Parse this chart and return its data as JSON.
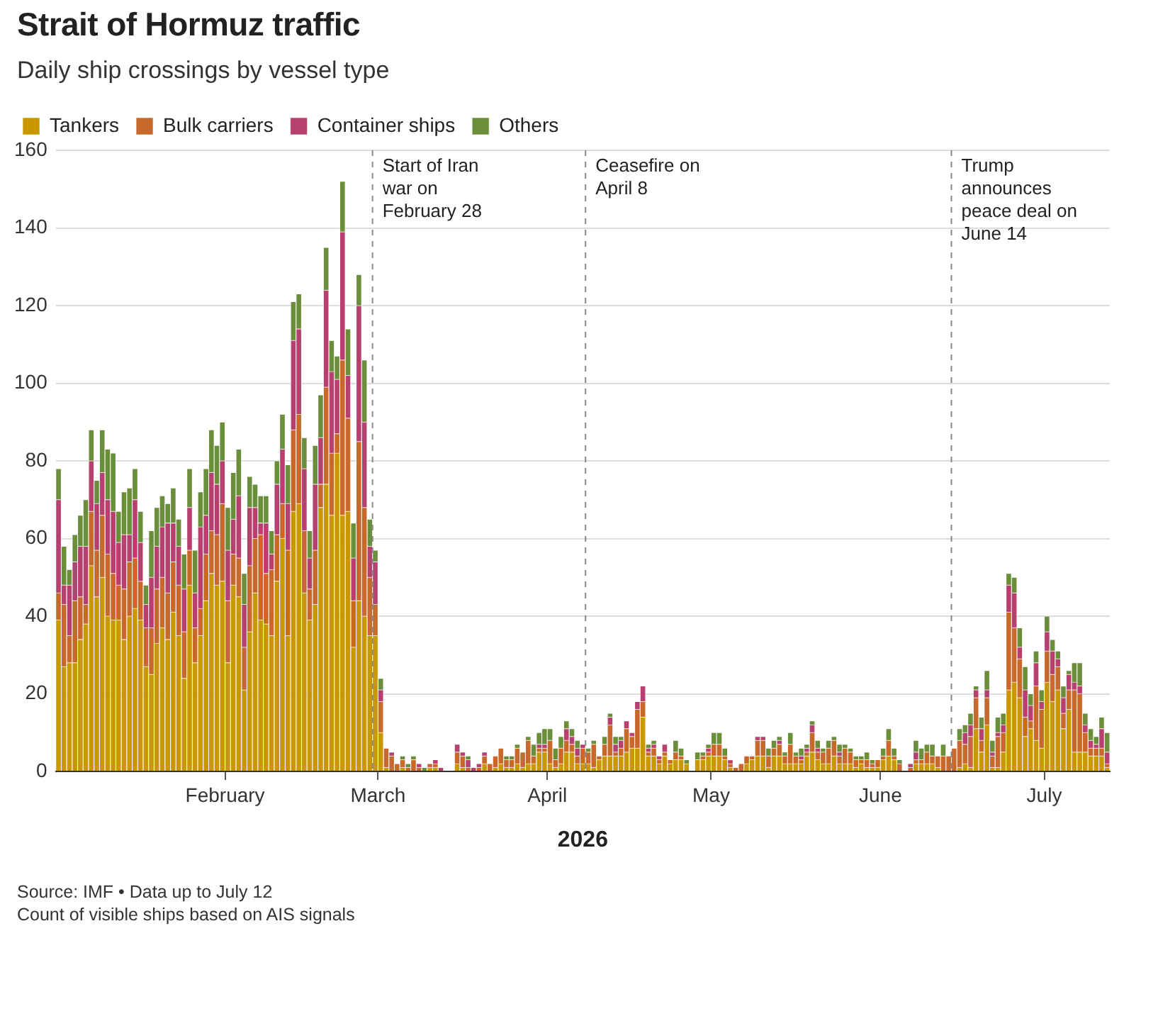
{
  "chart_data": {
    "type": "bar",
    "stacked": true,
    "title": "Strait of Hormuz traffic",
    "subtitle": "Daily ship crossings by vessel type",
    "xlabel": "2026",
    "x": [
      "2026-01-01",
      "2026-01-02",
      "2026-01-03",
      "2026-01-04",
      "2026-01-05",
      "2026-01-06",
      "2026-01-07",
      "2026-01-08",
      "2026-01-09",
      "2026-01-10",
      "2026-01-11",
      "2026-01-12",
      "2026-01-13",
      "2026-01-14",
      "2026-01-15",
      "2026-01-16",
      "2026-01-17",
      "2026-01-18",
      "2026-01-19",
      "2026-01-20",
      "2026-01-21",
      "2026-01-22",
      "2026-01-23",
      "2026-01-24",
      "2026-01-25",
      "2026-01-26",
      "2026-01-27",
      "2026-01-28",
      "2026-01-29",
      "2026-01-30",
      "2026-01-31",
      "2026-02-01",
      "2026-02-02",
      "2026-02-03",
      "2026-02-04",
      "2026-02-05",
      "2026-02-06",
      "2026-02-07",
      "2026-02-08",
      "2026-02-09",
      "2026-02-10",
      "2026-02-11",
      "2026-02-12",
      "2026-02-13",
      "2026-02-14",
      "2026-02-15",
      "2026-02-16",
      "2026-02-17",
      "2026-02-18",
      "2026-02-19",
      "2026-02-20",
      "2026-02-21",
      "2026-02-22",
      "2026-02-23",
      "2026-02-24",
      "2026-02-25",
      "2026-02-26",
      "2026-02-27",
      "2026-02-28",
      "2026-03-01",
      "2026-03-02",
      "2026-03-03",
      "2026-03-04",
      "2026-03-05",
      "2026-03-06",
      "2026-03-07",
      "2026-03-08",
      "2026-03-09",
      "2026-03-10",
      "2026-03-11",
      "2026-03-12",
      "2026-03-13",
      "2026-03-14",
      "2026-03-15",
      "2026-03-16",
      "2026-03-17",
      "2026-03-18",
      "2026-03-19",
      "2026-03-20",
      "2026-03-21",
      "2026-03-22",
      "2026-03-23",
      "2026-03-24",
      "2026-03-25",
      "2026-03-26",
      "2026-03-27",
      "2026-03-28",
      "2026-03-29",
      "2026-03-30",
      "2026-03-31",
      "2026-04-01",
      "2026-04-02",
      "2026-04-03",
      "2026-04-04",
      "2026-04-05",
      "2026-04-06",
      "2026-04-07",
      "2026-04-08",
      "2026-04-09",
      "2026-04-10",
      "2026-04-11",
      "2026-04-12",
      "2026-04-13",
      "2026-04-14",
      "2026-04-15",
      "2026-04-16",
      "2026-04-17",
      "2026-04-18",
      "2026-04-19",
      "2026-04-20",
      "2026-04-21",
      "2026-04-22",
      "2026-04-23",
      "2026-04-24",
      "2026-04-25",
      "2026-04-26",
      "2026-04-27",
      "2026-04-28",
      "2026-04-29",
      "2026-04-30",
      "2026-05-01",
      "2026-05-02",
      "2026-05-03",
      "2026-05-04",
      "2026-05-05",
      "2026-05-06",
      "2026-05-07",
      "2026-05-08",
      "2026-05-09",
      "2026-05-10",
      "2026-05-11",
      "2026-05-12",
      "2026-05-13",
      "2026-05-14",
      "2026-05-15",
      "2026-05-16",
      "2026-05-17",
      "2026-05-18",
      "2026-05-19",
      "2026-05-20",
      "2026-05-21",
      "2026-05-22",
      "2026-05-23",
      "2026-05-24",
      "2026-05-25",
      "2026-05-26",
      "2026-05-27",
      "2026-05-28",
      "2026-05-29",
      "2026-05-30",
      "2026-05-31",
      "2026-06-01",
      "2026-06-02",
      "2026-06-03",
      "2026-06-04",
      "2026-06-05",
      "2026-06-06",
      "2026-06-07",
      "2026-06-08",
      "2026-06-09",
      "2026-06-10",
      "2026-06-11",
      "2026-06-12",
      "2026-06-13",
      "2026-06-14",
      "2026-06-15",
      "2026-06-16",
      "2026-06-17",
      "2026-06-18",
      "2026-06-19",
      "2026-06-20",
      "2026-06-21",
      "2026-06-22",
      "2026-06-23",
      "2026-06-24",
      "2026-06-25",
      "2026-06-26",
      "2026-06-27",
      "2026-06-28",
      "2026-06-29",
      "2026-06-30",
      "2026-07-01",
      "2026-07-02",
      "2026-07-03",
      "2026-07-04",
      "2026-07-05",
      "2026-07-06",
      "2026-07-07",
      "2026-07-08",
      "2026-07-09",
      "2026-07-10",
      "2026-07-11",
      "2026-07-12"
    ],
    "series": [
      {
        "name": "Tankers",
        "color": "#c99700",
        "values": [
          39,
          27,
          28,
          28,
          34,
          38,
          53,
          45,
          50,
          40,
          39,
          39,
          34,
          40,
          42,
          39,
          27,
          25,
          33,
          37,
          34,
          41,
          35,
          24,
          48,
          28,
          35,
          44,
          51,
          48,
          49,
          28,
          48,
          45,
          21,
          36,
          46,
          39,
          38,
          35,
          49,
          60,
          35,
          67,
          69,
          46,
          39,
          43,
          68,
          74,
          66,
          82,
          66,
          67,
          32,
          44,
          40,
          35,
          35,
          10,
          1,
          0,
          0,
          1,
          0,
          0,
          0,
          0,
          1,
          1,
          0,
          0,
          0,
          2,
          1,
          0,
          0,
          0,
          2,
          0,
          1,
          2,
          1,
          1,
          2,
          1,
          2,
          2,
          5,
          5,
          2,
          1,
          2,
          5,
          5,
          2,
          2,
          2,
          1,
          3,
          4,
          4,
          4,
          4,
          5,
          6,
          6,
          14,
          4,
          4,
          2,
          4,
          2,
          3,
          3,
          2,
          0,
          3,
          3,
          4,
          4,
          4,
          3,
          1,
          0,
          0,
          2,
          3,
          4,
          4,
          1,
          4,
          4,
          2,
          2,
          2,
          2,
          4,
          5,
          3,
          2,
          2,
          4,
          2,
          2,
          2,
          1,
          2,
          1,
          1,
          1,
          3,
          4,
          3,
          0,
          0,
          0,
          2,
          2,
          2,
          2,
          1,
          0,
          0,
          0,
          1,
          2,
          1,
          11,
          5,
          12,
          1,
          1,
          5,
          21,
          23,
          19,
          9,
          11,
          8,
          6,
          23,
          18,
          21,
          11,
          16,
          5,
          5,
          5,
          4,
          4,
          4,
          1
        ]
      },
      {
        "name": "Bulk carriers",
        "color": "#c8682a",
        "values": [
          7,
          16,
          7,
          16,
          11,
          5,
          14,
          12,
          16,
          16,
          12,
          9,
          13,
          14,
          13,
          10,
          10,
          12,
          14,
          13,
          12,
          13,
          13,
          12,
          9,
          9,
          7,
          12,
          11,
          13,
          20,
          16,
          8,
          10,
          11,
          17,
          14,
          22,
          13,
          17,
          12,
          9,
          22,
          21,
          23,
          16,
          8,
          14,
          6,
          25,
          16,
          5,
          40,
          24,
          12,
          41,
          28,
          15,
          8,
          8,
          5,
          4,
          2,
          2,
          1,
          3,
          1,
          0,
          1,
          1,
          0,
          0,
          0,
          3,
          3,
          1,
          0,
          1,
          2,
          2,
          3,
          4,
          2,
          2,
          4,
          4,
          6,
          2,
          1,
          1,
          6,
          2,
          4,
          3,
          2,
          2,
          4,
          3,
          6,
          1,
          3,
          8,
          1,
          2,
          6,
          3,
          10,
          4,
          1,
          2,
          1,
          1,
          1,
          2,
          1,
          0,
          0,
          0,
          1,
          1,
          3,
          3,
          1,
          1,
          1,
          2,
          2,
          1,
          4,
          4,
          3,
          2,
          3,
          2,
          5,
          2,
          1,
          1,
          5,
          2,
          3,
          4,
          4,
          2,
          4,
          3,
          2,
          1,
          2,
          1,
          2,
          1,
          4,
          1,
          2,
          0,
          1,
          1,
          1,
          3,
          2,
          3,
          4,
          4,
          6,
          7,
          5,
          8,
          8,
          3,
          7,
          3,
          8,
          5,
          20,
          14,
          10,
          5,
          2,
          14,
          10,
          8,
          7,
          6,
          4,
          5,
          16,
          15,
          5,
          2,
          2,
          2,
          1
        ]
      },
      {
        "name": "Container ships",
        "color": "#b7406f",
        "values": [
          24,
          5,
          13,
          10,
          13,
          15,
          13,
          12,
          11,
          14,
          16,
          11,
          14,
          7,
          15,
          10,
          6,
          13,
          11,
          13,
          18,
          10,
          10,
          11,
          11,
          9,
          21,
          10,
          15,
          13,
          11,
          13,
          9,
          16,
          11,
          15,
          8,
          3,
          13,
          4,
          13,
          14,
          12,
          23,
          22,
          16,
          8,
          17,
          12,
          25,
          21,
          14,
          33,
          11,
          11,
          35,
          22,
          8,
          11,
          3,
          0,
          1,
          0,
          0,
          0,
          0,
          1,
          0,
          0,
          1,
          1,
          0,
          0,
          2,
          1,
          2,
          1,
          1,
          1,
          0,
          0,
          0,
          0,
          0,
          0,
          0,
          0,
          0,
          1,
          1,
          0,
          0,
          0,
          3,
          2,
          2,
          1,
          0,
          0,
          0,
          0,
          2,
          2,
          2,
          2,
          1,
          2,
          4,
          1,
          1,
          1,
          2,
          0,
          0,
          0,
          0,
          0,
          0,
          0,
          1,
          0,
          0,
          0,
          1,
          0,
          0,
          0,
          0,
          1,
          1,
          0,
          0,
          1,
          0,
          0,
          0,
          1,
          1,
          2,
          1,
          0,
          0,
          0,
          1,
          0,
          0,
          0,
          0,
          0,
          0,
          0,
          0,
          0,
          0,
          0,
          0,
          1,
          2,
          0,
          0,
          0,
          0,
          0,
          0,
          0,
          0,
          3,
          3,
          2,
          3,
          2,
          1,
          1,
          2,
          7,
          9,
          3,
          7,
          4,
          6,
          2,
          5,
          6,
          2,
          4,
          4,
          2,
          2,
          2,
          2,
          1,
          5,
          3
        ]
      },
      {
        "name": "Others",
        "color": "#6b8e3a",
        "values": [
          8,
          10,
          4,
          7,
          8,
          12,
          8,
          6,
          11,
          13,
          15,
          8,
          11,
          12,
          8,
          8,
          5,
          12,
          10,
          8,
          5,
          9,
          7,
          9,
          10,
          11,
          9,
          12,
          11,
          10,
          10,
          11,
          12,
          12,
          8,
          8,
          6,
          7,
          7,
          6,
          6,
          9,
          10,
          10,
          9,
          8,
          7,
          10,
          11,
          11,
          8,
          6,
          13,
          12,
          9,
          8,
          16,
          7,
          3,
          3,
          0,
          0,
          0,
          1,
          1,
          1,
          0,
          1,
          0,
          0,
          0,
          0,
          0,
          0,
          0,
          1,
          0,
          0,
          0,
          0,
          0,
          0,
          1,
          1,
          1,
          0,
          1,
          3,
          3,
          4,
          3,
          3,
          3,
          2,
          2,
          2,
          0,
          1,
          1,
          0,
          2,
          1,
          2,
          1,
          0,
          0,
          0,
          0,
          1,
          1,
          0,
          0,
          0,
          3,
          2,
          1,
          0,
          2,
          1,
          1,
          3,
          3,
          2,
          0,
          0,
          0,
          0,
          0,
          0,
          0,
          2,
          2,
          1,
          1,
          3,
          1,
          2,
          1,
          1,
          2,
          1,
          2,
          1,
          2,
          1,
          1,
          1,
          1,
          2,
          1,
          0,
          2,
          3,
          2,
          1,
          0,
          0,
          3,
          3,
          2,
          3,
          0,
          3,
          0,
          0,
          3,
          2,
          3,
          1,
          3,
          5,
          3,
          4,
          3,
          3,
          4,
          5,
          6,
          3,
          3,
          3,
          4,
          3,
          2,
          3,
          1,
          5,
          6,
          3,
          3,
          2,
          3,
          5
        ]
      }
    ],
    "xlim": [
      "2026-01-01",
      "2026-07-13"
    ],
    "xticks": [
      {
        "value": "2026-02-01",
        "label": "February"
      },
      {
        "value": "2026-03-01",
        "label": "March"
      },
      {
        "value": "2026-04-01",
        "label": "April"
      },
      {
        "value": "2026-05-01",
        "label": "May"
      },
      {
        "value": "2026-06-01",
        "label": "June"
      },
      {
        "value": "2026-07-01",
        "label": "July"
      }
    ],
    "ylim": [
      0,
      160
    ],
    "yticks": [
      0,
      20,
      40,
      60,
      80,
      100,
      120,
      140,
      160
    ],
    "grid": "y",
    "legend": "top left",
    "ref_lines": [
      {
        "axis": "x",
        "value": "2026-02-28",
        "label": "Start of Iran war on February 28",
        "line_style": "dashed"
      },
      {
        "axis": "x",
        "value": "2026-04-08",
        "label": "Ceasefire on April 8",
        "line_style": "dashed"
      },
      {
        "axis": "x",
        "value": "2026-06-14",
        "label": "Trump announces peace deal on June 14",
        "line_style": "dashed"
      }
    ],
    "annotations": [
      "Source: IMF • Data up to July 12",
      "Count of visible ships based on AIS signals"
    ]
  }
}
